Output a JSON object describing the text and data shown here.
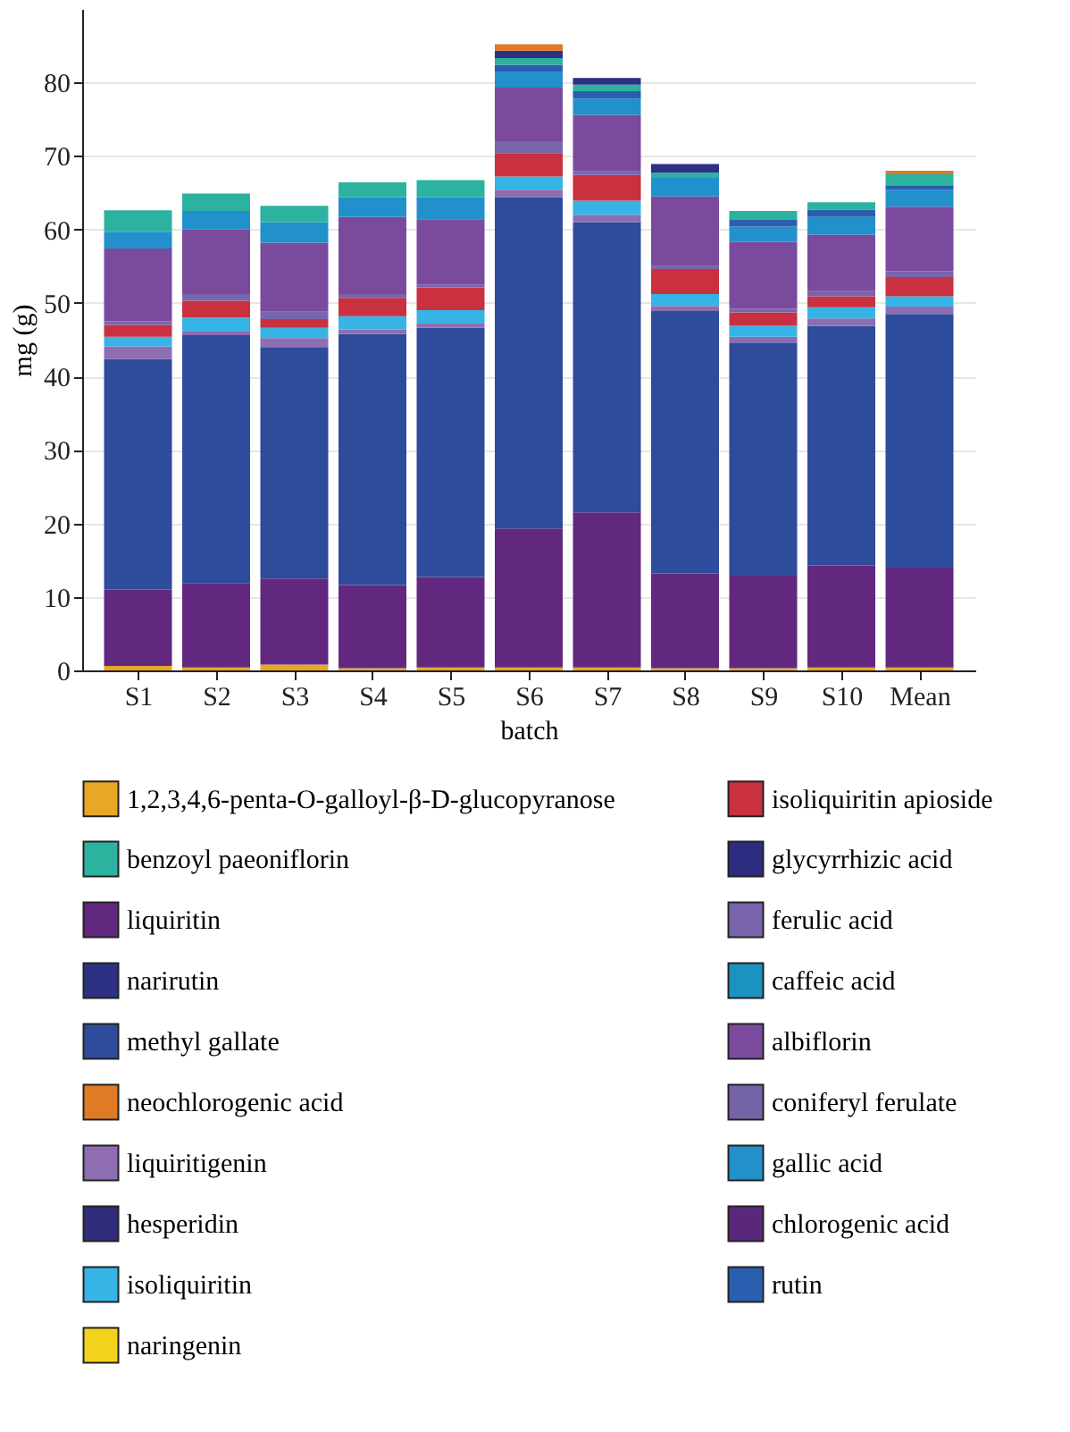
{
  "chart_data": {
    "type": "bar",
    "stacked": true,
    "xlabel": "batch",
    "ylabel": "mg (g)",
    "categories": [
      "S1",
      "S2",
      "S3",
      "S4",
      "S5",
      "S6",
      "S7",
      "S8",
      "S9",
      "S10",
      "Mean"
    ],
    "ylim": [
      0,
      90
    ],
    "yticks": [
      0,
      10,
      20,
      30,
      40,
      50,
      60,
      70,
      80
    ],
    "grid": "y",
    "legend": "bottom",
    "series": [
      {
        "name": "1,2,3,4,6-penta-O-galloyl-β-D-glucopyranose",
        "color": "#e8a825",
        "values": [
          0.6,
          0.4,
          0.8,
          0.3,
          0.4,
          0.4,
          0.4,
          0.3,
          0.3,
          0.4,
          0.4
        ]
      },
      {
        "name": "liquiritin",
        "color": "#62287f",
        "values": [
          10.4,
          11.5,
          11.7,
          11.3,
          12.3,
          18.9,
          21.1,
          12.9,
          12.6,
          13.9,
          13.6
        ]
      },
      {
        "name": "methyl gallate",
        "color": "#2f4b9c",
        "values": [
          31.4,
          33.7,
          31.5,
          34.2,
          33.9,
          45.1,
          39.5,
          35.7,
          31.7,
          32.6,
          34.5
        ]
      },
      {
        "name": "liquiritigenin",
        "color": "#8e6db3",
        "values": [
          1.7,
          0.5,
          1.2,
          0.6,
          0.6,
          1.0,
          1.0,
          0.7,
          0.8,
          1.0,
          1.0
        ]
      },
      {
        "name": "isoliquiritin",
        "color": "#36b4e6",
        "values": [
          1.3,
          1.9,
          1.4,
          1.8,
          1.8,
          1.8,
          1.9,
          1.6,
          1.5,
          1.5,
          1.4
        ]
      },
      {
        "name": "isoliquiritin apioside",
        "color": "#c93040",
        "values": [
          1.6,
          2.3,
          1.2,
          2.5,
          3.1,
          3.2,
          3.5,
          3.4,
          1.8,
          1.5,
          2.6
        ]
      },
      {
        "name": "ferulic acid",
        "color": "#7a65ad",
        "values": [
          0.5,
          0.9,
          1.0,
          0.5,
          0.4,
          1.6,
          0.5,
          0.4,
          0.5,
          0.7,
          0.8
        ]
      },
      {
        "name": "albiflorin",
        "color": "#7a4a9d",
        "values": [
          9.9,
          8.8,
          9.4,
          10.5,
          8.9,
          7.3,
          7.7,
          9.5,
          9.1,
          7.7,
          8.8
        ]
      },
      {
        "name": "gallic acid",
        "color": "#2290cb",
        "values": [
          2.3,
          2.5,
          2.8,
          2.7,
          3.0,
          2.1,
          2.2,
          2.5,
          2.1,
          2.4,
          2.3
        ]
      },
      {
        "name": "rutin",
        "color": "#2a5fb0",
        "values": [
          0,
          0,
          0,
          0,
          0,
          1.0,
          1.0,
          0,
          0.9,
          1.0,
          0.6
        ]
      },
      {
        "name": "benzoyl paeoniflorin",
        "color": "#2bb3a0",
        "values": [
          2.9,
          2.4,
          2.2,
          2.0,
          2.3,
          0.9,
          0.9,
          0.7,
          1.2,
          1.0,
          1.5
        ]
      },
      {
        "name": "narirutin",
        "color": "#2d3184",
        "values": [
          0,
          0,
          0,
          0,
          0,
          1.0,
          0.9,
          1.2,
          0,
          0,
          0
        ]
      },
      {
        "name": "neochlorogenic acid",
        "color": "#e07a25",
        "values": [
          0,
          0,
          0,
          0,
          0,
          0.9,
          0,
          0,
          0,
          0,
          0.5
        ]
      },
      {
        "name": "hesperidin",
        "color": "#2f2d7c",
        "values": [
          0,
          0,
          0,
          0,
          0,
          0,
          0,
          0,
          0,
          0,
          0
        ]
      },
      {
        "name": "naringenin",
        "color": "#f3d21b",
        "values": [
          0,
          0,
          0,
          0,
          0,
          0,
          0,
          0,
          0,
          0,
          0
        ]
      },
      {
        "name": "glycyrrhizic acid",
        "color": "#2e2c80",
        "values": [
          0,
          0,
          0,
          0,
          0,
          0,
          0,
          0,
          0,
          0,
          0
        ]
      },
      {
        "name": "caffeic acid",
        "color": "#1a93c1",
        "values": [
          0,
          0,
          0,
          0,
          0,
          0,
          0,
          0,
          0,
          0,
          0
        ]
      },
      {
        "name": "coniferyl ferulate",
        "color": "#7563a8",
        "values": [
          0,
          0,
          0,
          0,
          0,
          0,
          0,
          0,
          0,
          0,
          0
        ]
      },
      {
        "name": "chlorogenic acid",
        "color": "#59287a",
        "values": [
          0,
          0,
          0,
          0,
          0,
          0,
          0,
          0,
          0,
          0,
          0
        ]
      }
    ]
  }
}
